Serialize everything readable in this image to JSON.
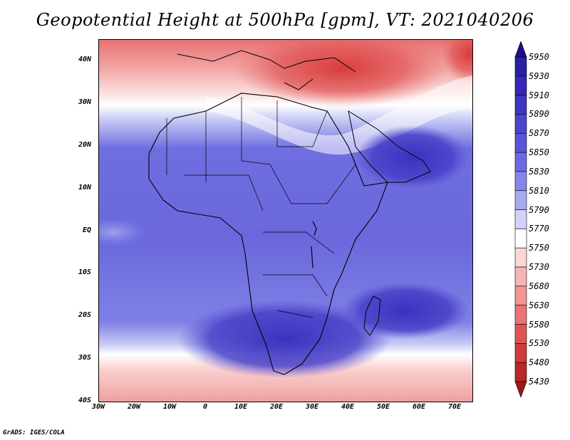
{
  "title": "Geopotential Height at 500hPa [gpm], VT: 2021040206",
  "footer": "GrADS: IGES/COLA",
  "map": {
    "lat_labels": [
      "40N",
      "30N",
      "20N",
      "10N",
      "EQ",
      "10S",
      "20S",
      "30S",
      "40S"
    ],
    "lon_labels": [
      "30W",
      "20W",
      "10W",
      "0",
      "10E",
      "20E",
      "30E",
      "40E",
      "50E",
      "60E",
      "70E"
    ],
    "field": "geopotential height at 500 hPa"
  },
  "colorbar": {
    "labels": [
      "5950",
      "5930",
      "5910",
      "5890",
      "5870",
      "5850",
      "5830",
      "5810",
      "5790",
      "5770",
      "5750",
      "5730",
      "5680",
      "5630",
      "5580",
      "5530",
      "5480",
      "5430"
    ],
    "colors": [
      "#1e0c8c",
      "#2a1fa6",
      "#3428b4",
      "#3e34c0",
      "#4b44cc",
      "#5a55d6",
      "#6c6ae0",
      "#8486e8",
      "#a8abf0",
      "#d0d2f8",
      "#ffffff",
      "#fbd6d6",
      "#f6b4b4",
      "#f09494",
      "#e87474",
      "#de5454",
      "#cf3a3a",
      "#b82828",
      "#9e1818"
    ]
  }
}
